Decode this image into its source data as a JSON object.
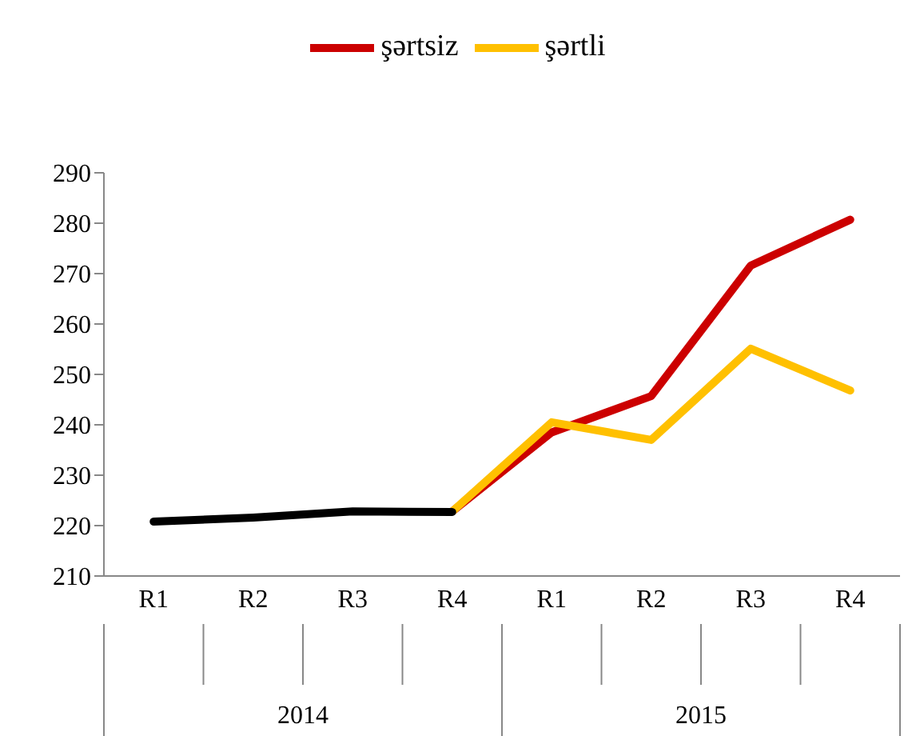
{
  "chart_data": {
    "type": "line",
    "categories": [
      "R1",
      "R2",
      "R3",
      "R4",
      "R1",
      "R2",
      "R3",
      "R4"
    ],
    "series": [
      {
        "name": "şərtsiz",
        "color": "#cc0000",
        "values": [
          null,
          null,
          null,
          222.8,
          238.5,
          245.7,
          271.6,
          280.7
        ]
      },
      {
        "name": "şərtli",
        "color": "#ffc000",
        "values": [
          null,
          null,
          null,
          222.8,
          240.5,
          237.0,
          255.1,
          246.8
        ]
      },
      {
        "color": "#000000",
        "values": [
          220.8,
          221.6,
          222.8,
          222.7,
          null,
          null,
          null,
          null
        ]
      }
    ],
    "annotations": [
      "2014",
      "2015"
    ],
    "ylim": [
      210,
      290
    ],
    "yticks": [
      210,
      220,
      230,
      240,
      250,
      260,
      270,
      280,
      290
    ],
    "grid": false,
    "legend": "top",
    "marker": "none",
    "line_style": "solid"
  }
}
